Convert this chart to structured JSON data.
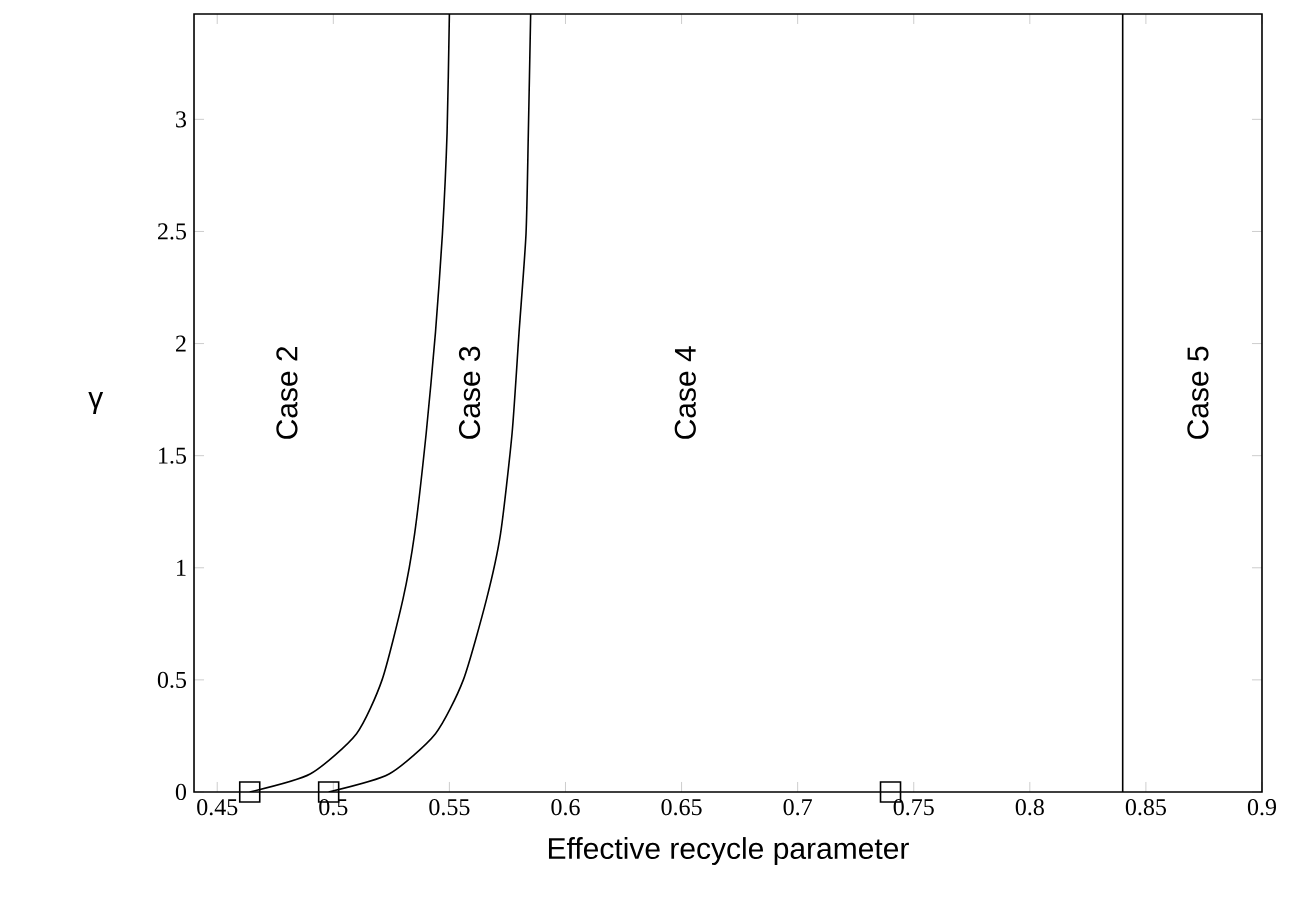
{
  "chart_data": {
    "type": "line",
    "xlabel": "Effective recycle parameter",
    "ylabel": "γ",
    "xlim": [
      0.44,
      0.9
    ],
    "ylim": [
      0,
      3.47
    ],
    "xticks": [
      0.45,
      0.5,
      0.55,
      0.6,
      0.65,
      0.7,
      0.75,
      0.8,
      0.85,
      0.9
    ],
    "yticks": [
      0,
      0.5,
      1,
      1.5,
      2,
      2.5,
      3
    ],
    "grid": false,
    "series": [
      {
        "color": "#000000",
        "marker": "none",
        "x": [
          0.464,
          0.49,
          0.51,
          0.521,
          0.53,
          0.535,
          0.54,
          0.544,
          0.547,
          0.549,
          0.55
        ],
        "values": [
          0,
          0.08,
          0.26,
          0.5,
          0.86,
          1.15,
          1.6,
          2.05,
          2.49,
          2.94,
          3.47
        ]
      },
      {
        "color": "#000000",
        "marker": "none",
        "x": [
          0.498,
          0.524,
          0.544,
          0.556,
          0.566,
          0.572,
          0.577,
          0.58,
          0.583,
          0.584,
          0.585
        ],
        "values": [
          0,
          0.08,
          0.26,
          0.5,
          0.86,
          1.15,
          1.6,
          2.05,
          2.49,
          2.94,
          3.47
        ]
      },
      {
        "type": "scatter",
        "color": "#000000",
        "marker": "square",
        "x": [
          0.464,
          0.498,
          0.74
        ],
        "values": [
          0,
          0,
          0
        ]
      }
    ],
    "ref_lines": [
      {
        "axis": "x",
        "value": 0.84,
        "color": "#000000"
      }
    ],
    "annotations": [
      "Case 2",
      "Case 3",
      "Case 4",
      "Case 5"
    ]
  }
}
